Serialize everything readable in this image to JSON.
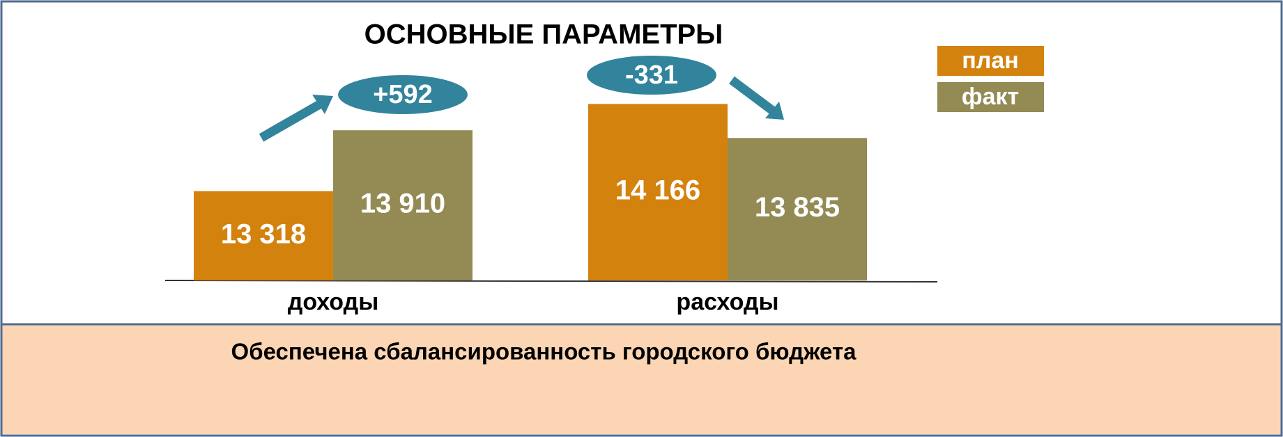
{
  "chart_data": {
    "type": "bar",
    "title": "ОСНОВНЫЕ ПАРАМЕТРЫ",
    "categories": [
      "доходы",
      "расходы"
    ],
    "series": [
      {
        "name": "план",
        "color": "#d4820e",
        "values": [
          13318,
          14166
        ],
        "value_labels": [
          "13 318",
          "14 166"
        ]
      },
      {
        "name": "факт",
        "color": "#948a54",
        "values": [
          13910,
          13835
        ],
        "value_labels": [
          "13 910",
          "13 835"
        ]
      }
    ],
    "ylim": [
      12450,
      14500
    ],
    "annotations": [
      "+592",
      "-331"
    ],
    "legend": "top-right"
  },
  "footer": "Обеспечена сбалансированность городского бюджета"
}
